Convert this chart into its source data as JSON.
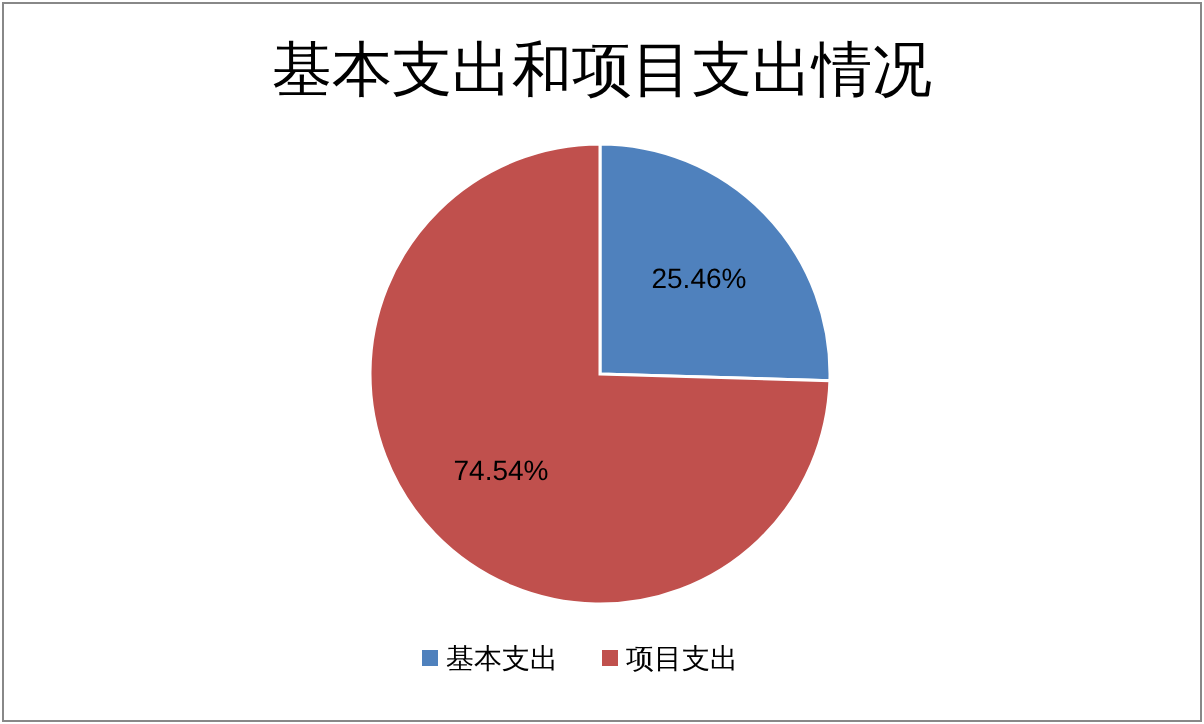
{
  "chart_data": {
    "type": "pie",
    "title": "基本支出和项目支出情况",
    "categories": [
      "基本支出",
      "项目支出"
    ],
    "values": [
      25.46,
      74.54
    ],
    "colors": [
      "#4f81bd",
      "#c0504d"
    ],
    "value_labels": [
      "25.46%",
      "74.54%"
    ],
    "legend": "bottom"
  }
}
